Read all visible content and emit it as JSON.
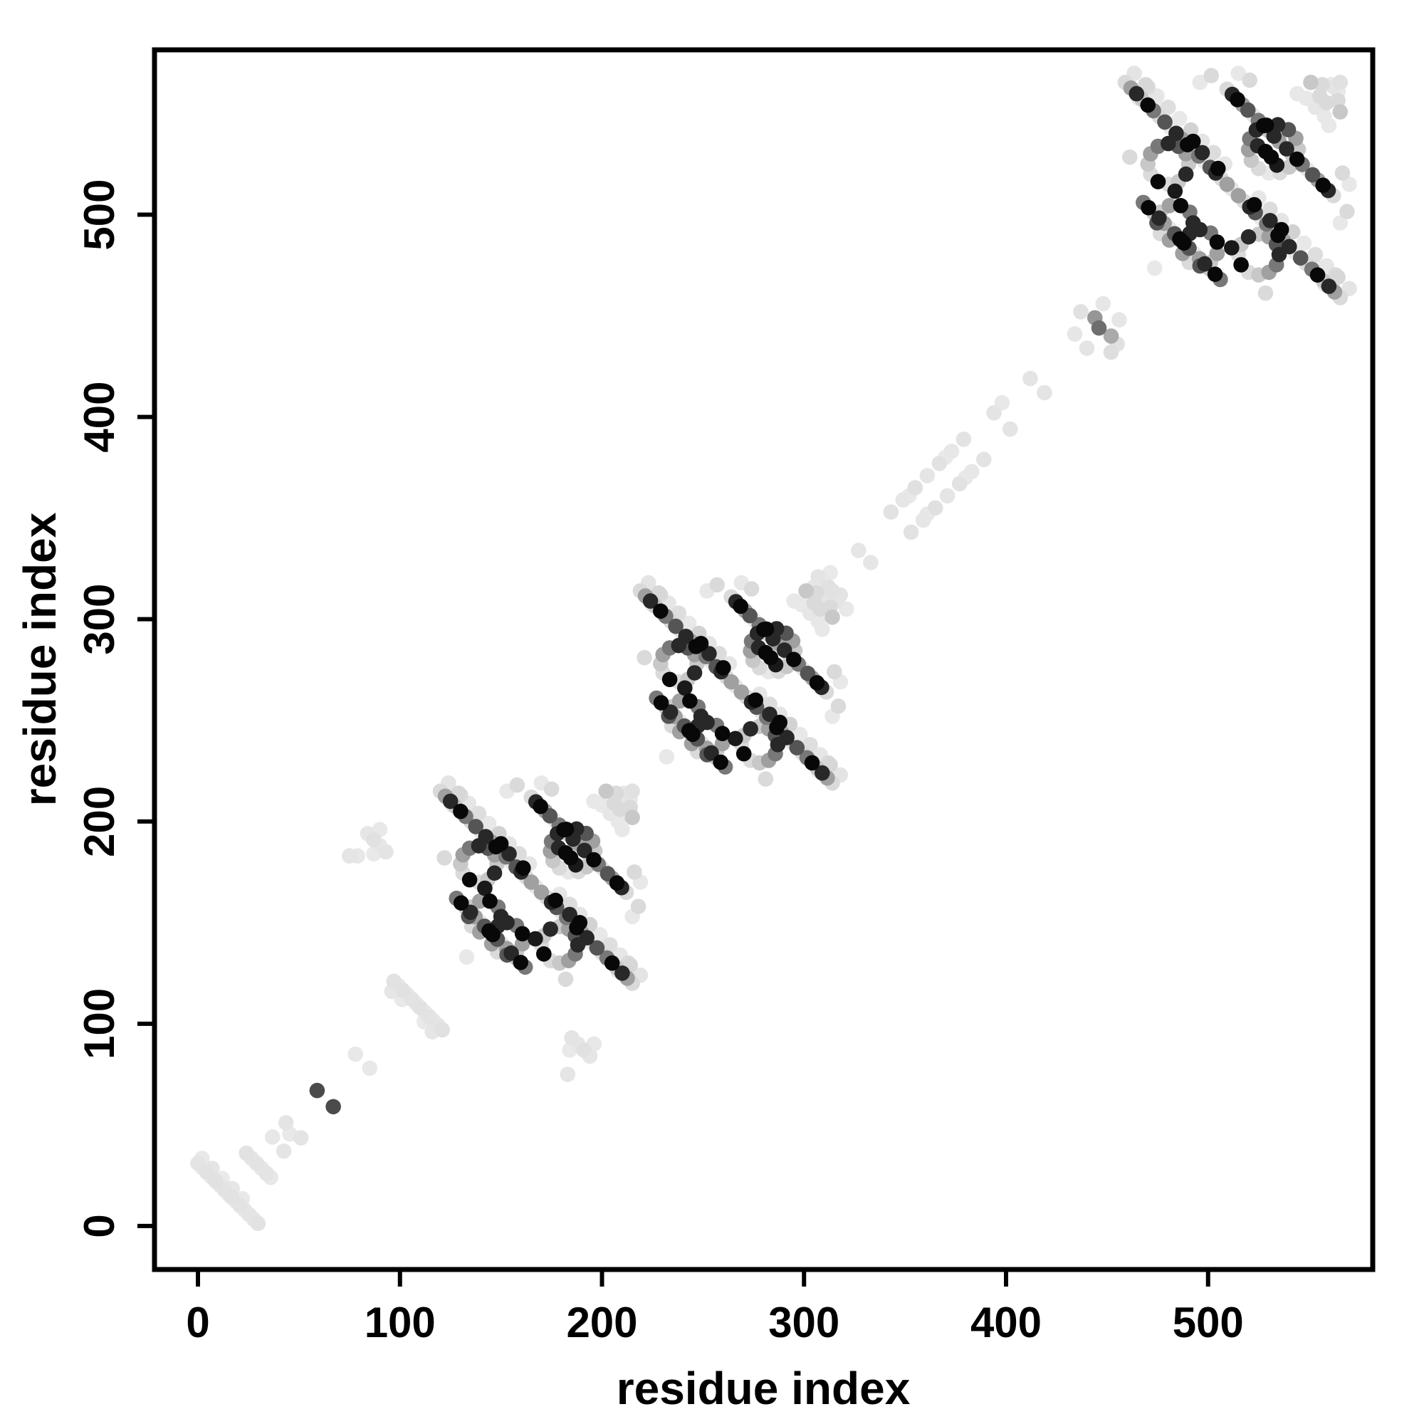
{
  "figure": {
    "background": "#ffffff",
    "border_color": "#000000",
    "description": "Protein residue-residue contact map scatter plot, grayscale filled circles, three dense repeated domain clusters along the main diagonal plus sparse light near-diagonal linker contacts"
  },
  "axes": {
    "x_title": "residue index",
    "y_title": "residue index",
    "x_tick_labels": [
      "0",
      "100",
      "200",
      "300",
      "400",
      "500"
    ],
    "y_tick_labels": [
      "0",
      "100",
      "200",
      "300",
      "400",
      "500"
    ]
  },
  "chart_data": {
    "type": "scatter",
    "title": "",
    "xlabel": "residue index",
    "ylabel": "residue index",
    "x_ticks": [
      0,
      100,
      200,
      300,
      400,
      500
    ],
    "y_ticks": [
      0,
      100,
      200,
      300,
      400,
      500
    ],
    "xlim": [
      -21.5,
      581.5
    ],
    "ylim": [
      -21.5,
      581.5
    ],
    "grid": false,
    "legend": "none",
    "marker": {
      "shape": "circle",
      "radius_px": 10.8,
      "color_encoding": "gray value 0-255, 0=black"
    },
    "symmetry": "contact map: motif points (i,j) are mirrored to (j,i) about the main diagonal",
    "domains": [
      {
        "name": "domain-1",
        "offset": 120,
        "scale": 1.0
      },
      {
        "name": "domain-2",
        "offset": 219,
        "scale": 1.0
      },
      {
        "name": "domain-3",
        "offset": 459,
        "scale": 1.12
      }
    ],
    "domain_motif": {
      "description": "repeated-domain contact pattern in local residue coords (0-99): long anti-diagonal hairpin streaks, two contact rings, diagonal-centered eye ring with dark core, peripheral light contacts",
      "points": [
        [
          0,
          95,
          218
        ],
        [
          2.5,
          92.5,
          160
        ],
        [
          5,
          90,
          40
        ],
        [
          7.5,
          87.5,
          200
        ],
        [
          10,
          85,
          8
        ],
        [
          12.5,
          82.5,
          120
        ],
        [
          15,
          80,
          218
        ],
        [
          17.5,
          77.5,
          85
        ],
        [
          20,
          75,
          232
        ],
        [
          22.5,
          72.5,
          40
        ],
        [
          25,
          70,
          160
        ],
        [
          27.5,
          67.5,
          8
        ],
        [
          30,
          65,
          200
        ],
        [
          32.5,
          62.5,
          120
        ],
        [
          35,
          60,
          232
        ],
        [
          37.5,
          57.5,
          85
        ],
        [
          40,
          55,
          40
        ],
        [
          42.5,
          52.5,
          218
        ],
        [
          45,
          50,
          160
        ],
        [
          4,
          99,
          228
        ],
        [
          9,
          94,
          215
        ],
        [
          14,
          89,
          230
        ],
        [
          19,
          84,
          222
        ],
        [
          24,
          79,
          232
        ],
        [
          29,
          74,
          210
        ],
        [
          34,
          69,
          228
        ],
        [
          39,
          64,
          220
        ],
        [
          44,
          59,
          230
        ],
        [
          28,
          59,
          200
        ],
        [
          26.8,
          63.5,
          160
        ],
        [
          23.5,
          66.8,
          85
        ],
        [
          19,
          68,
          40
        ],
        [
          14.5,
          66.8,
          120
        ],
        [
          11.2,
          63.5,
          160
        ],
        [
          10,
          59,
          200
        ],
        [
          11.2,
          54.5,
          218
        ],
        [
          14.5,
          51.2,
          8
        ],
        [
          19,
          50,
          218
        ],
        [
          23.5,
          51.2,
          200
        ],
        [
          26.8,
          54.5,
          40
        ],
        [
          30,
          33,
          40
        ],
        [
          28.5,
          37.7,
          120
        ],
        [
          24.5,
          40.6,
          8
        ],
        [
          19.5,
          40.6,
          160
        ],
        [
          15.5,
          37.7,
          200
        ],
        [
          14,
          33,
          85
        ],
        [
          15.5,
          28.3,
          218
        ],
        [
          19.5,
          25.4,
          160
        ],
        [
          24.5,
          25.4,
          120
        ],
        [
          28.5,
          28.3,
          40
        ],
        [
          8,
          42,
          120
        ],
        [
          10.3,
          39.7,
          8
        ],
        [
          12.6,
          37.4,
          200
        ],
        [
          14.9,
          35.1,
          40
        ],
        [
          17.2,
          32.8,
          160
        ],
        [
          19.5,
          30.5,
          232
        ],
        [
          21.8,
          28.2,
          85
        ],
        [
          24.1,
          25.9,
          8
        ],
        [
          45,
          92,
          218
        ],
        [
          47.3,
          89.7,
          40
        ],
        [
          49.6,
          87.4,
          8
        ],
        [
          51.9,
          85.1,
          160
        ],
        [
          54.2,
          82.8,
          85
        ],
        [
          56.5,
          80.5,
          232
        ],
        [
          58.8,
          78.2,
          120
        ],
        [
          61.1,
          75.9,
          8
        ],
        [
          63.4,
          73.6,
          200
        ],
        [
          65.7,
          71.3,
          40
        ],
        [
          68,
          69,
          160
        ],
        [
          6,
          88,
          232
        ],
        [
          10,
          93,
          218
        ],
        [
          13,
          85,
          232
        ],
        [
          2,
          62,
          218
        ],
        [
          33,
          95,
          232
        ],
        [
          38,
          98,
          218
        ],
        [
          50,
          99,
          232
        ],
        [
          55,
          96,
          218
        ],
        [
          76,
          90,
          232
        ],
        [
          82,
          95,
          200
        ],
        [
          86,
          89,
          218
        ],
        [
          91,
          94,
          232
        ],
        [
          94,
          87,
          218
        ],
        [
          88,
          80,
          232
        ],
        [
          47,
          48,
          230
        ],
        [
          24,
          26,
          228
        ],
        [
          13,
          13,
          232
        ],
        [
          84,
          84,
          230
        ],
        [
          92,
          93,
          228
        ],
        [
          95,
          95,
          225
        ],
        [
          30,
          69,
          8
        ],
        [
          34,
          64,
          40
        ],
        [
          41,
          57,
          8
        ],
        [
          22,
          47,
          25
        ]
      ],
      "eye_points": [
        [
          76.5,
          65.5,
          200
        ],
        [
          75.4,
          70.3,
          160
        ],
        [
          72.1,
          74.1,
          85
        ],
        [
          67.4,
          76.3,
          40
        ],
        [
          62.4,
          76.1,
          8
        ],
        [
          57.9,
          74,
          40
        ],
        [
          55,
          70.1,
          120
        ],
        [
          54.5,
          65.3,
          160
        ],
        [
          55.7,
          60.6,
          200
        ],
        [
          58.9,
          57,
          218
        ],
        [
          63.5,
          55,
          232
        ],
        [
          68.3,
          55.2,
          218
        ],
        [
          72.4,
          57.6,
          200
        ],
        [
          75.3,
          61.3,
          232
        ],
        [
          62,
          64.5,
          8
        ],
        [
          64.5,
          62,
          8
        ],
        [
          67,
          58.5,
          25
        ],
        [
          58.5,
          67,
          40
        ]
      ]
    },
    "extra_points": [
      [
        0,
        31,
        228
      ],
      [
        2.2,
        28.8,
        232
      ],
      [
        4.4,
        26.6,
        226
      ],
      [
        6.6,
        24.4,
        230
      ],
      [
        8.8,
        22.2,
        225
      ],
      [
        11,
        20,
        231
      ],
      [
        13.2,
        17.8,
        227
      ],
      [
        15.4,
        15.6,
        230
      ],
      [
        16.5,
        14.5,
        226
      ],
      [
        18.7,
        12.3,
        231
      ],
      [
        20.9,
        10.1,
        227
      ],
      [
        23.1,
        7.9,
        232
      ],
      [
        25.3,
        5.7,
        228
      ],
      [
        27.5,
        3.5,
        230
      ],
      [
        29.7,
        1.3,
        226
      ],
      [
        2,
        33.5,
        233
      ],
      [
        7,
        28.5,
        229
      ],
      [
        12,
        23.5,
        234
      ],
      [
        17,
        18.5,
        230
      ],
      [
        22,
        13.5,
        233
      ],
      [
        24,
        36,
        226
      ],
      [
        26.5,
        33.5,
        230
      ],
      [
        29,
        31,
        227
      ],
      [
        31.5,
        28.5,
        231
      ],
      [
        34,
        26,
        228
      ],
      [
        36,
        24,
        232
      ],
      [
        43.6,
        51,
        228
      ],
      [
        51,
        43.6,
        228
      ],
      [
        36.9,
        44,
        231
      ],
      [
        42.5,
        37,
        229
      ],
      [
        45.5,
        45.5,
        233
      ],
      [
        59,
        67,
        75
      ],
      [
        67,
        59,
        75
      ],
      [
        78,
        85,
        232
      ],
      [
        85,
        78,
        232
      ],
      [
        97,
        121,
        226
      ],
      [
        99.2,
        118.8,
        230
      ],
      [
        101.4,
        116.6,
        225
      ],
      [
        103.6,
        114.4,
        231
      ],
      [
        105.8,
        112.2,
        227
      ],
      [
        108,
        110,
        232
      ],
      [
        110,
        108,
        226
      ],
      [
        112.2,
        105.8,
        230
      ],
      [
        114.4,
        103.6,
        227
      ],
      [
        116.6,
        101.4,
        231
      ],
      [
        118.8,
        99.2,
        228
      ],
      [
        121,
        97,
        225
      ],
      [
        101,
        112,
        233
      ],
      [
        112,
        101,
        233
      ],
      [
        96,
        116,
        230
      ],
      [
        116,
        96,
        230
      ],
      [
        84,
        194,
        230
      ],
      [
        87,
        191,
        225
      ],
      [
        90,
        188,
        230
      ],
      [
        93,
        185,
        228
      ],
      [
        87,
        184,
        233
      ],
      [
        90,
        196,
        232
      ],
      [
        79,
        183,
        231
      ],
      [
        75,
        183,
        229
      ],
      [
        194,
        84,
        230
      ],
      [
        191,
        87,
        225
      ],
      [
        188,
        90,
        230
      ],
      [
        185,
        93,
        228
      ],
      [
        184,
        87,
        233
      ],
      [
        196,
        90,
        232
      ],
      [
        183,
        75,
        229
      ],
      [
        307,
        321,
        228
      ],
      [
        312,
        316,
        225
      ],
      [
        309,
        310,
        230
      ],
      [
        316,
        309,
        228
      ],
      [
        321,
        305,
        232
      ],
      [
        305,
        316,
        230
      ],
      [
        313,
        323,
        233
      ],
      [
        318,
        312,
        227
      ],
      [
        327,
        334,
        230
      ],
      [
        333,
        328,
        230
      ],
      [
        343,
        353,
        226
      ],
      [
        349,
        359,
        230
      ],
      [
        355,
        365,
        224
      ],
      [
        361,
        371,
        229
      ],
      [
        367,
        377,
        226
      ],
      [
        373,
        383,
        231
      ],
      [
        379,
        389,
        227
      ],
      [
        353,
        343,
        226
      ],
      [
        359,
        349,
        230
      ],
      [
        365,
        355,
        224
      ],
      [
        371,
        361,
        229
      ],
      [
        377,
        367,
        226
      ],
      [
        383,
        373,
        231
      ],
      [
        389,
        379,
        227
      ],
      [
        352,
        361,
        232
      ],
      [
        361,
        352,
        232
      ],
      [
        370,
        380,
        233
      ],
      [
        380,
        370,
        233
      ],
      [
        394,
        402,
        228
      ],
      [
        402,
        394,
        228
      ],
      [
        398,
        407,
        232
      ],
      [
        412,
        419,
        228
      ],
      [
        419,
        412,
        228
      ],
      [
        437,
        452,
        225
      ],
      [
        444,
        449,
        150
      ],
      [
        446,
        444,
        110
      ],
      [
        452,
        440,
        170
      ],
      [
        455,
        436,
        225
      ],
      [
        434,
        441,
        230
      ],
      [
        440,
        434,
        228
      ],
      [
        452,
        432,
        222
      ],
      [
        448,
        456,
        230
      ],
      [
        456,
        448,
        230
      ]
    ]
  }
}
